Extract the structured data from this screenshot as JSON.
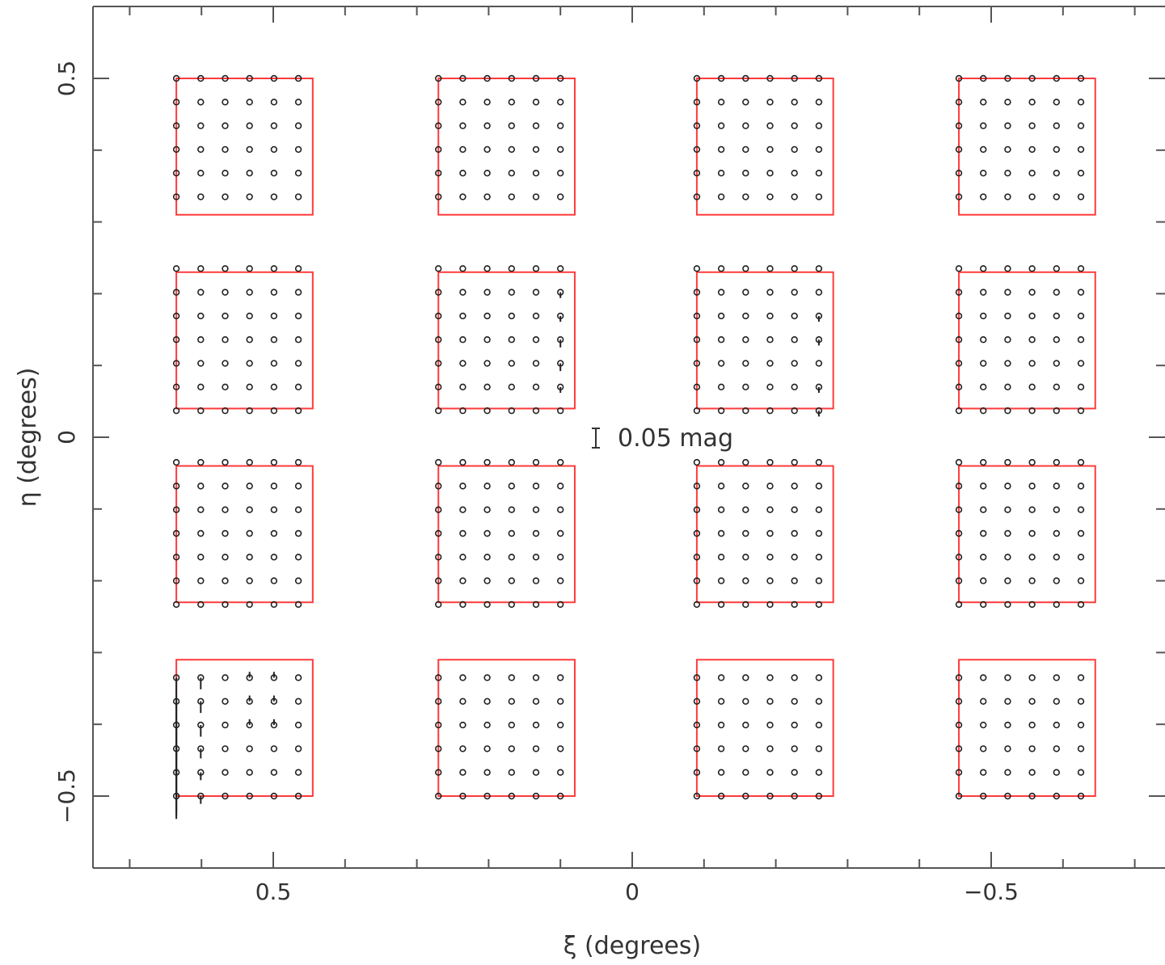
{
  "chart_data": {
    "type": "scatter",
    "xlabel": "ξ (degrees)",
    "ylabel": "η (degrees)",
    "xlim": [
      0.75,
      -0.75
    ],
    "ylim": [
      -0.6,
      0.6
    ],
    "x_ticks": [
      0.5,
      0,
      -0.5
    ],
    "x_tick_labels": [
      "0.5",
      "0",
      "−0.5"
    ],
    "y_ticks": [
      0.5,
      0,
      -0.5
    ],
    "y_tick_labels": [
      "0.5",
      "0",
      "−0.5"
    ],
    "x_minor_ticks": [
      0.7,
      0.6,
      0.5,
      0.4,
      0.3,
      0.2,
      0.1,
      0,
      -0.1,
      -0.2,
      -0.3,
      -0.4,
      -0.5,
      -0.6,
      -0.7
    ],
    "y_minor_ticks": [
      0.5,
      0.4,
      0.3,
      0.2,
      0.1,
      0,
      -0.1,
      -0.2,
      -0.3,
      -0.4,
      -0.5
    ],
    "grid": false,
    "annotation": "0.05 mag",
    "scale_bar_mag": 0.05,
    "box_color": "#ff3b3b",
    "point_color": "#222222",
    "detectors": {
      "x_ranges": [
        [
          0.635,
          0.445
        ],
        [
          0.27,
          0.08
        ],
        [
          -0.09,
          -0.28
        ],
        [
          -0.455,
          -0.645
        ]
      ],
      "y_ranges": [
        [
          0.5,
          0.31
        ],
        [
          0.23,
          0.04
        ],
        [
          -0.04,
          -0.23
        ],
        [
          -0.31,
          -0.5
        ]
      ]
    },
    "sample_grid": {
      "x": [
        [
          0.635,
          0.601,
          0.567,
          0.533,
          0.499,
          0.465
        ],
        [
          0.27,
          0.236,
          0.202,
          0.168,
          0.134,
          0.1
        ],
        [
          -0.09,
          -0.124,
          -0.158,
          -0.192,
          -0.226,
          -0.26
        ],
        [
          -0.455,
          -0.489,
          -0.523,
          -0.557,
          -0.591,
          -0.625
        ]
      ],
      "y": [
        [
          0.5,
          0.467,
          0.434,
          0.401,
          0.368,
          0.335
        ],
        [
          0.235,
          0.202,
          0.169,
          0.136,
          0.103,
          0.07,
          0.037
        ],
        [
          -0.035,
          -0.068,
          -0.101,
          -0.134,
          -0.167,
          -0.2,
          -0.233
        ],
        [
          -0.335,
          -0.368,
          -0.401,
          -0.434,
          -0.467,
          -0.5
        ]
      ]
    },
    "residual_vectors": [
      {
        "x": 0.635,
        "y": -0.335,
        "length_mag": -0.2
      },
      {
        "x": 0.635,
        "y": -0.368,
        "length_mag": -0.19
      },
      {
        "x": 0.635,
        "y": -0.401,
        "length_mag": -0.18
      },
      {
        "x": 0.635,
        "y": -0.434,
        "length_mag": -0.16
      },
      {
        "x": 0.635,
        "y": -0.467,
        "length_mag": -0.12
      },
      {
        "x": 0.635,
        "y": -0.5,
        "length_mag": -0.05
      },
      {
        "x": 0.601,
        "y": -0.335,
        "length_mag": -0.03
      },
      {
        "x": 0.601,
        "y": -0.368,
        "length_mag": -0.03
      },
      {
        "x": 0.601,
        "y": -0.401,
        "length_mag": -0.03
      },
      {
        "x": 0.601,
        "y": -0.434,
        "length_mag": -0.025
      },
      {
        "x": 0.601,
        "y": -0.467,
        "length_mag": -0.02
      },
      {
        "x": 0.601,
        "y": -0.5,
        "length_mag": -0.02
      },
      {
        "x": 0.533,
        "y": -0.335,
        "length_mag": 0.015
      },
      {
        "x": 0.499,
        "y": -0.335,
        "length_mag": 0.015
      },
      {
        "x": 0.533,
        "y": -0.368,
        "length_mag": 0.015
      },
      {
        "x": 0.499,
        "y": -0.368,
        "length_mag": 0.015
      },
      {
        "x": 0.533,
        "y": -0.401,
        "length_mag": 0.015
      },
      {
        "x": 0.499,
        "y": -0.401,
        "length_mag": 0.015
      },
      {
        "x": 0.1,
        "y": 0.202,
        "length_mag": -0.015
      },
      {
        "x": 0.1,
        "y": 0.169,
        "length_mag": -0.015
      },
      {
        "x": 0.1,
        "y": 0.136,
        "length_mag": -0.02
      },
      {
        "x": 0.1,
        "y": 0.103,
        "length_mag": -0.02
      },
      {
        "x": 0.1,
        "y": 0.07,
        "length_mag": -0.015
      },
      {
        "x": -0.26,
        "y": 0.169,
        "length_mag": -0.015
      },
      {
        "x": -0.26,
        "y": 0.136,
        "length_mag": -0.015
      },
      {
        "x": -0.26,
        "y": 0.07,
        "length_mag": -0.015
      },
      {
        "x": -0.26,
        "y": 0.037,
        "length_mag": -0.015
      }
    ]
  }
}
